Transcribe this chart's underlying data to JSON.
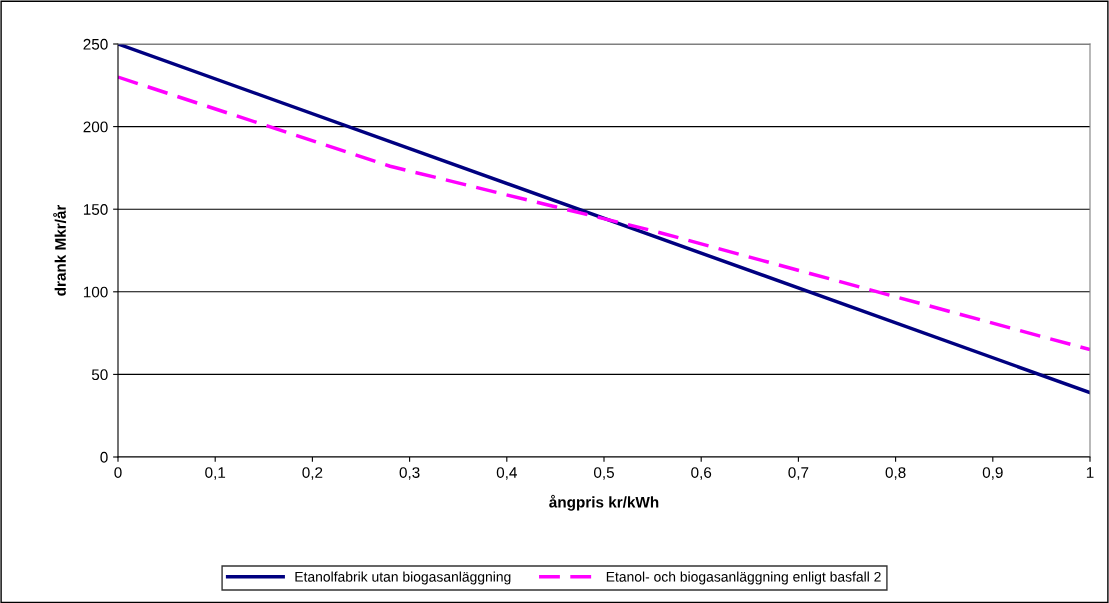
{
  "chart_data": {
    "type": "line",
    "xlabel": "ångpris kr/kWh",
    "ylabel": "drank Mkr/år",
    "series": [
      {
        "name": "Etanolfabrik utan biogasanläggning",
        "color": "#000080",
        "line_style": "solid",
        "x": [
          0,
          1
        ],
        "values": [
          250,
          39
        ]
      },
      {
        "name": "Etanol- och biogasanläggning enligt basfall 2",
        "color": "#ff00ff",
        "line_style": "dashed",
        "x": [
          0,
          0.28,
          0.55,
          1
        ],
        "values": [
          230,
          176,
          137,
          65
        ]
      }
    ],
    "xlim": [
      0,
      1
    ],
    "ylim": [
      0,
      250
    ],
    "xticks": [
      0,
      {
        "value": 0.1,
        "label": "0,1"
      },
      {
        "value": 0.2,
        "label": "0,2"
      },
      {
        "value": 0.3,
        "label": "0,3"
      },
      {
        "value": 0.4,
        "label": "0,4"
      },
      {
        "value": 0.5,
        "label": "0,5"
      },
      {
        "value": 0.6,
        "label": "0,6"
      },
      {
        "value": 0.7,
        "label": "0,7"
      },
      {
        "value": 0.8,
        "label": "0,8"
      },
      {
        "value": 0.9,
        "label": "0,9"
      },
      1
    ],
    "yticks": [
      0,
      50,
      100,
      150,
      200,
      250
    ],
    "grid": "y",
    "legend": "bottom",
    "marker": "none"
  }
}
